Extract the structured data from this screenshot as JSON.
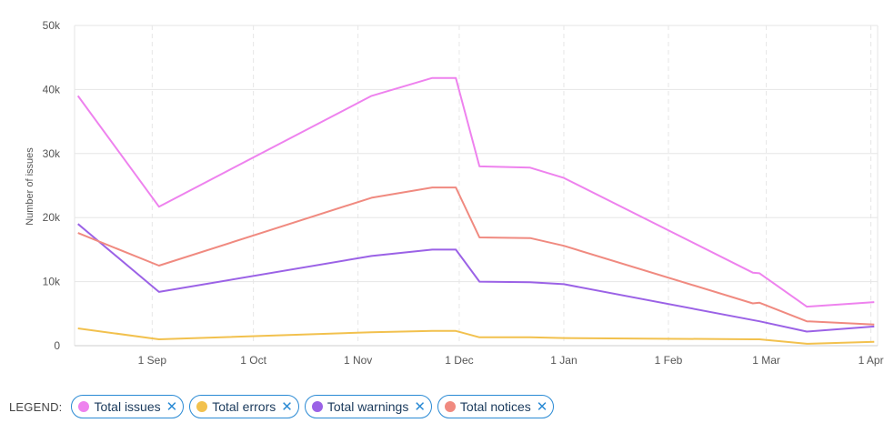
{
  "chart_data": {
    "type": "line",
    "ylabel": "Number of issues",
    "ylim": [
      0,
      50000
    ],
    "y_ticks": [
      "0",
      "10k",
      "20k",
      "30k",
      "40k",
      "50k"
    ],
    "y_tick_values": [
      0,
      10000,
      20000,
      30000,
      40000,
      50000
    ],
    "x_axis_type": "date",
    "xlim": [
      "2023-08-09",
      "2024-04-03"
    ],
    "x_ticks": [
      {
        "label": "1 Sep",
        "date": "2023-09-01"
      },
      {
        "label": "1 Oct",
        "date": "2023-10-01"
      },
      {
        "label": "1 Nov",
        "date": "2023-11-01"
      },
      {
        "label": "1 Dec",
        "date": "2023-12-01"
      },
      {
        "label": "1 Jan",
        "date": "2024-01-01"
      },
      {
        "label": "1 Feb",
        "date": "2024-02-01"
      },
      {
        "label": "1 Mar",
        "date": "2024-03-01"
      },
      {
        "label": "1 Apr",
        "date": "2024-04-01"
      }
    ],
    "x": [
      "2023-08-10",
      "2023-09-03",
      "2023-11-05",
      "2023-11-23",
      "2023-11-30",
      "2023-12-07",
      "2023-12-22",
      "2024-01-01",
      "2024-02-26",
      "2024-02-28",
      "2024-03-13",
      "2024-04-02"
    ],
    "series": [
      {
        "name": "Total issues",
        "color": "#ee82ee",
        "values": [
          39000,
          21700,
          39000,
          41800,
          41800,
          28000,
          27800,
          26200,
          11400,
          11300,
          6100,
          6800
        ]
      },
      {
        "name": "Total errors",
        "color": "#f2c14e",
        "values": [
          2700,
          1000,
          2100,
          2300,
          2300,
          1300,
          1300,
          1200,
          1000,
          1000,
          300,
          600
        ]
      },
      {
        "name": "Total warnings",
        "color": "#9b62e6",
        "values": [
          19000,
          8400,
          14000,
          15000,
          15000,
          10000,
          9900,
          9600,
          4000,
          3800,
          2200,
          3000
        ]
      },
      {
        "name": "Total notices",
        "color": "#f08a80",
        "values": [
          17600,
          12500,
          23100,
          24700,
          24700,
          16900,
          16800,
          15600,
          6600,
          6700,
          3800,
          3300
        ]
      }
    ],
    "grid": true
  },
  "legend": {
    "label": "LEGEND:",
    "items": [
      {
        "label": "Total issues",
        "color": "#ee82ee",
        "remove_icon": "close-icon"
      },
      {
        "label": "Total errors",
        "color": "#f2c14e",
        "remove_icon": "close-icon"
      },
      {
        "label": "Total warnings",
        "color": "#9b62e6",
        "remove_icon": "close-icon"
      },
      {
        "label": "Total notices",
        "color": "#f08a80",
        "remove_icon": "close-icon"
      }
    ]
  }
}
